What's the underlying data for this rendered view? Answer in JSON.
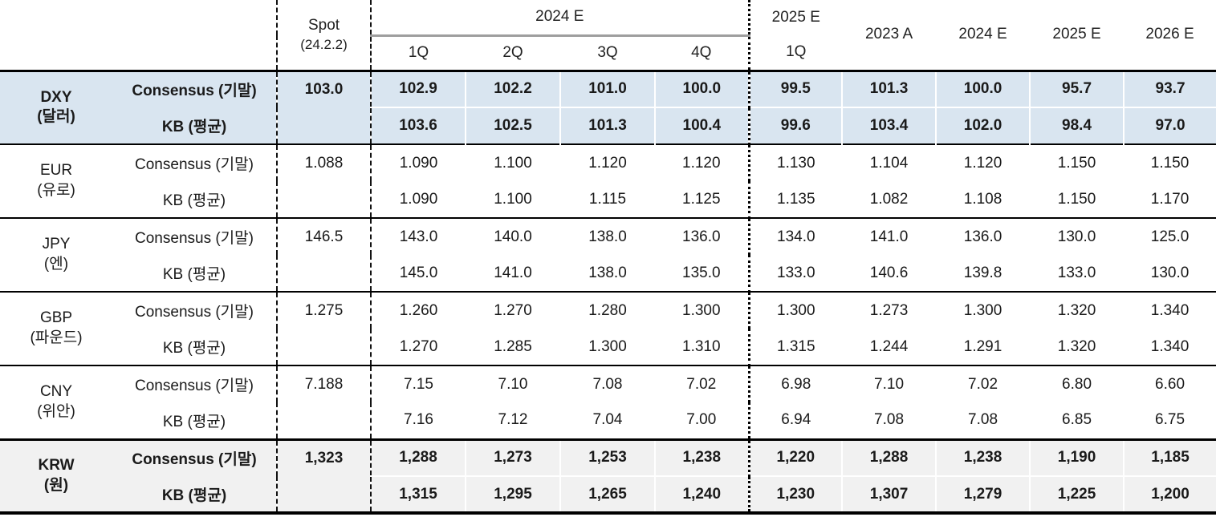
{
  "chart_data": {
    "type": "table",
    "title": "",
    "header": {
      "spot_line1": "Spot",
      "spot_line2": "(24.2.2)",
      "span_2024": "2024 E",
      "quarters_2024": [
        "1Q",
        "2Q",
        "3Q",
        "4Q"
      ],
      "span_2025": "2025 E",
      "quarter_2025": "1Q",
      "annual_columns": [
        "2023 A",
        "2024 E",
        "2025 E",
        "2026 E"
      ]
    },
    "colors": {
      "highlight_blue": "#d9e5f0",
      "highlight_gray": "#f1f1f1",
      "grid_black": "#000000",
      "underline_gray": "#9e9e9e",
      "text": "#1a1a1a"
    },
    "groups": [
      {
        "code": "DXY",
        "korean": "(달러)",
        "highlight": "blue",
        "bold": true,
        "rows": [
          {
            "label": "Consensus (기말)",
            "spot": "103.0",
            "values": [
              "102.9",
              "102.2",
              "101.0",
              "100.0",
              "99.5",
              "101.3",
              "100.0",
              "95.7",
              "93.7"
            ]
          },
          {
            "label": "KB (평균)",
            "spot": "",
            "values": [
              "103.6",
              "102.5",
              "101.3",
              "100.4",
              "99.6",
              "103.4",
              "102.0",
              "98.4",
              "97.0"
            ]
          }
        ]
      },
      {
        "code": "EUR",
        "korean": "(유로)",
        "highlight": "none",
        "bold": false,
        "rows": [
          {
            "label": "Consensus (기말)",
            "spot": "1.088",
            "values": [
              "1.090",
              "1.100",
              "1.120",
              "1.120",
              "1.130",
              "1.104",
              "1.120",
              "1.150",
              "1.150"
            ]
          },
          {
            "label": "KB (평균)",
            "spot": "",
            "values": [
              "1.090",
              "1.100",
              "1.115",
              "1.125",
              "1.135",
              "1.082",
              "1.108",
              "1.150",
              "1.170"
            ]
          }
        ]
      },
      {
        "code": "JPY",
        "korean": "(엔)",
        "highlight": "none",
        "bold": false,
        "rows": [
          {
            "label": "Consensus (기말)",
            "spot": "146.5",
            "values": [
              "143.0",
              "140.0",
              "138.0",
              "136.0",
              "134.0",
              "141.0",
              "136.0",
              "130.0",
              "125.0"
            ]
          },
          {
            "label": "KB (평균)",
            "spot": "",
            "values": [
              "145.0",
              "141.0",
              "138.0",
              "135.0",
              "133.0",
              "140.6",
              "139.8",
              "133.0",
              "130.0"
            ]
          }
        ]
      },
      {
        "code": "GBP",
        "korean": "(파운드)",
        "highlight": "none",
        "bold": false,
        "rows": [
          {
            "label": "Consensus (기말)",
            "spot": "1.275",
            "values": [
              "1.260",
              "1.270",
              "1.280",
              "1.300",
              "1.300",
              "1.273",
              "1.300",
              "1.320",
              "1.340"
            ]
          },
          {
            "label": "KB (평균)",
            "spot": "",
            "values": [
              "1.270",
              "1.285",
              "1.300",
              "1.310",
              "1.315",
              "1.244",
              "1.291",
              "1.320",
              "1.340"
            ]
          }
        ]
      },
      {
        "code": "CNY",
        "korean": "(위안)",
        "highlight": "none",
        "bold": false,
        "rows": [
          {
            "label": "Consensus (기말)",
            "spot": "7.188",
            "values": [
              "7.15",
              "7.10",
              "7.08",
              "7.02",
              "6.98",
              "7.10",
              "7.02",
              "6.80",
              "6.60"
            ]
          },
          {
            "label": "KB (평균)",
            "spot": "",
            "values": [
              "7.16",
              "7.12",
              "7.04",
              "7.00",
              "6.94",
              "7.08",
              "7.08",
              "6.85",
              "6.75"
            ]
          }
        ]
      },
      {
        "code": "KRW",
        "korean": "(원)",
        "highlight": "gray",
        "bold": true,
        "rows": [
          {
            "label": "Consensus (기말)",
            "spot": "1,323",
            "values": [
              "1,288",
              "1,273",
              "1,253",
              "1,238",
              "1,220",
              "1,288",
              "1,238",
              "1,190",
              "1,185"
            ]
          },
          {
            "label": "KB (평균)",
            "spot": "",
            "values": [
              "1,315",
              "1,295",
              "1,265",
              "1,240",
              "1,230",
              "1,307",
              "1,279",
              "1,225",
              "1,200"
            ]
          }
        ]
      }
    ]
  }
}
